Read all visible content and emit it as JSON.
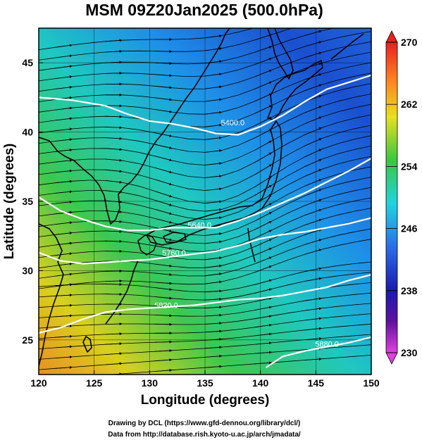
{
  "title": "MSM 09Z20Jan2025 (500.0hPa)",
  "xlabel": "Longitude (degrees)",
  "ylabel": "Latitude  (degrees)",
  "credits": [
    "Drawing by DCL (https://www.gfd-dennou.org/library/dcl/)",
    "Data from http://database.rish.kyoto-u.ac.jp/arch/jmadata/"
  ],
  "colorbar": {
    "min": 230,
    "max": 270,
    "ticks": [
      {
        "value": 230,
        "label": "230"
      },
      {
        "value": 238,
        "label": "238"
      },
      {
        "value": 246,
        "label": "246"
      },
      {
        "value": 254,
        "label": "254"
      },
      {
        "value": 262,
        "label": "262"
      },
      {
        "value": 270,
        "label": "270"
      }
    ],
    "colors": [
      "#e040e0",
      "#1a1ab0",
      "#2a6de8",
      "#1fd4e0",
      "#3ac840",
      "#e8e020",
      "#ff8020",
      "#e82020"
    ]
  },
  "chart_data": {
    "type": "map",
    "xlim": [
      120,
      150
    ],
    "ylim": [
      22.5,
      47.5
    ],
    "xticks": [
      {
        "value": 120,
        "label": "120"
      },
      {
        "value": 125,
        "label": "125"
      },
      {
        "value": 130,
        "label": "130"
      },
      {
        "value": 135,
        "label": "135"
      },
      {
        "value": 140,
        "label": "140"
      },
      {
        "value": 145,
        "label": "145"
      },
      {
        "value": 150,
        "label": "150"
      }
    ],
    "yticks": [
      {
        "value": 25,
        "label": "25"
      },
      {
        "value": 30,
        "label": "30"
      },
      {
        "value": 35,
        "label": "35"
      },
      {
        "value": 40,
        "label": "40"
      },
      {
        "value": 45,
        "label": "45"
      }
    ],
    "contours": [
      {
        "label": "5400.0",
        "label_at": [
          137.5,
          40.5
        ],
        "points": [
          [
            120,
            42.5
          ],
          [
            123,
            42.3
          ],
          [
            126,
            41.9
          ],
          [
            128,
            41.3
          ],
          [
            130,
            40.8
          ],
          [
            132,
            40.6
          ],
          [
            134,
            40.3
          ],
          [
            136,
            39.9
          ],
          [
            138,
            39.8
          ],
          [
            140,
            40.4
          ],
          [
            142,
            41.2
          ],
          [
            144,
            42.2
          ],
          [
            146,
            43.1
          ],
          [
            148,
            43.6
          ],
          [
            150,
            44.1
          ]
        ]
      },
      {
        "label": "5640.0",
        "label_at": [
          134.5,
          33.1
        ],
        "points": [
          [
            120,
            35.3
          ],
          [
            122,
            34.3
          ],
          [
            124,
            33.7
          ],
          [
            126,
            33.2
          ],
          [
            128,
            32.9
          ],
          [
            130,
            32.9
          ],
          [
            132,
            33.1
          ],
          [
            134,
            33.1
          ],
          [
            136,
            33.1
          ],
          [
            138,
            33.6
          ],
          [
            140,
            34.2
          ],
          [
            142,
            34.9
          ],
          [
            144,
            35.6
          ],
          [
            146,
            36.4
          ],
          [
            148,
            37.2
          ],
          [
            150,
            38.1
          ]
        ]
      },
      {
        "label": "5760.0",
        "label_at": [
          132.2,
          31.1
        ],
        "points": [
          [
            120,
            31.3
          ],
          [
            122,
            30.7
          ],
          [
            124,
            30.5
          ],
          [
            126,
            30.6
          ],
          [
            128,
            30.7
          ],
          [
            130,
            30.8
          ],
          [
            132,
            31.0
          ],
          [
            134,
            31.2
          ],
          [
            136,
            31.4
          ],
          [
            138,
            31.8
          ],
          [
            140,
            32.3
          ],
          [
            142,
            32.6
          ],
          [
            144,
            32.8
          ],
          [
            146,
            33.1
          ],
          [
            148,
            33.4
          ],
          [
            150,
            33.8
          ]
        ]
      },
      {
        "label": "5820.0",
        "label_at": [
          131.5,
          27.3
        ],
        "points": [
          [
            120,
            25.5
          ],
          [
            122,
            25.9
          ],
          [
            124,
            26.5
          ],
          [
            126,
            27.0
          ],
          [
            128,
            27.2
          ],
          [
            130,
            27.3
          ],
          [
            132,
            27.4
          ],
          [
            134,
            27.5
          ],
          [
            136,
            27.7
          ],
          [
            138,
            27.9
          ],
          [
            140,
            28.0
          ],
          [
            142,
            28.2
          ],
          [
            144,
            28.5
          ],
          [
            146,
            28.8
          ],
          [
            148,
            29.3
          ],
          [
            150,
            29.7
          ]
        ]
      },
      {
        "label": "5880.0",
        "label_at": [
          146.0,
          24.5
        ],
        "points": [
          [
            140.5,
            23.0
          ],
          [
            142,
            23.8
          ],
          [
            144,
            24.2
          ],
          [
            146,
            24.5
          ],
          [
            148,
            24.8
          ],
          [
            150,
            25.2
          ]
        ]
      }
    ]
  }
}
